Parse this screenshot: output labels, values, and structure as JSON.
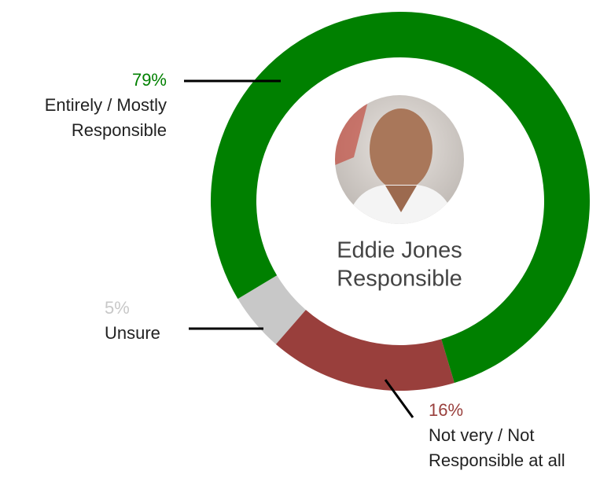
{
  "chart_data": {
    "type": "pie",
    "donut": true,
    "center_label": [
      "Eddie Jones",
      "Responsible"
    ],
    "categories": [
      [
        "Entirely / Mostly",
        "Responsible"
      ],
      [
        "Not very / Not",
        "Responsible at all"
      ],
      [
        "Unsure"
      ]
    ],
    "values": [
      79,
      16,
      5
    ],
    "value_labels": [
      "79%",
      "16%",
      "5%"
    ],
    "colors": [
      "#008000",
      "#993f3c",
      "#c8c8c8"
    ]
  }
}
